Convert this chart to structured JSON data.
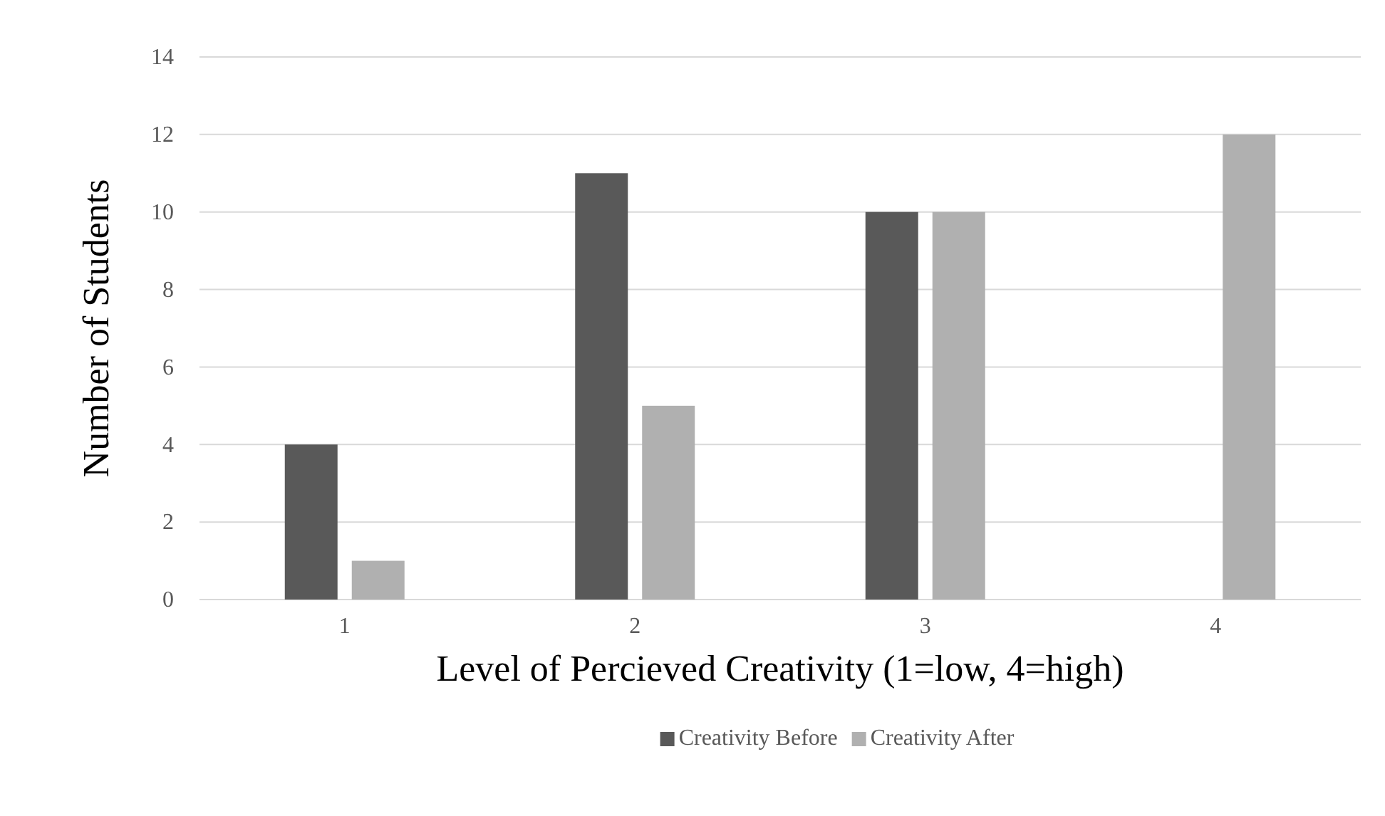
{
  "chart_data": {
    "type": "bar",
    "xlabel": "Level of Percieved Creativity (1=low, 4=high)",
    "ylabel": "Number of Students",
    "categories": [
      "1",
      "2",
      "3",
      "4"
    ],
    "series": [
      {
        "name": "Creativity Before",
        "color": "#595959",
        "values": [
          4,
          11,
          10,
          0
        ]
      },
      {
        "name": "Creativity After",
        "color": "#b0b0b0",
        "values": [
          1,
          5,
          10,
          12
        ]
      }
    ],
    "ylim": [
      0,
      14
    ],
    "yticks": [
      0,
      2,
      4,
      6,
      8,
      10,
      12,
      14
    ],
    "grid": "y",
    "legend": "bottom"
  }
}
